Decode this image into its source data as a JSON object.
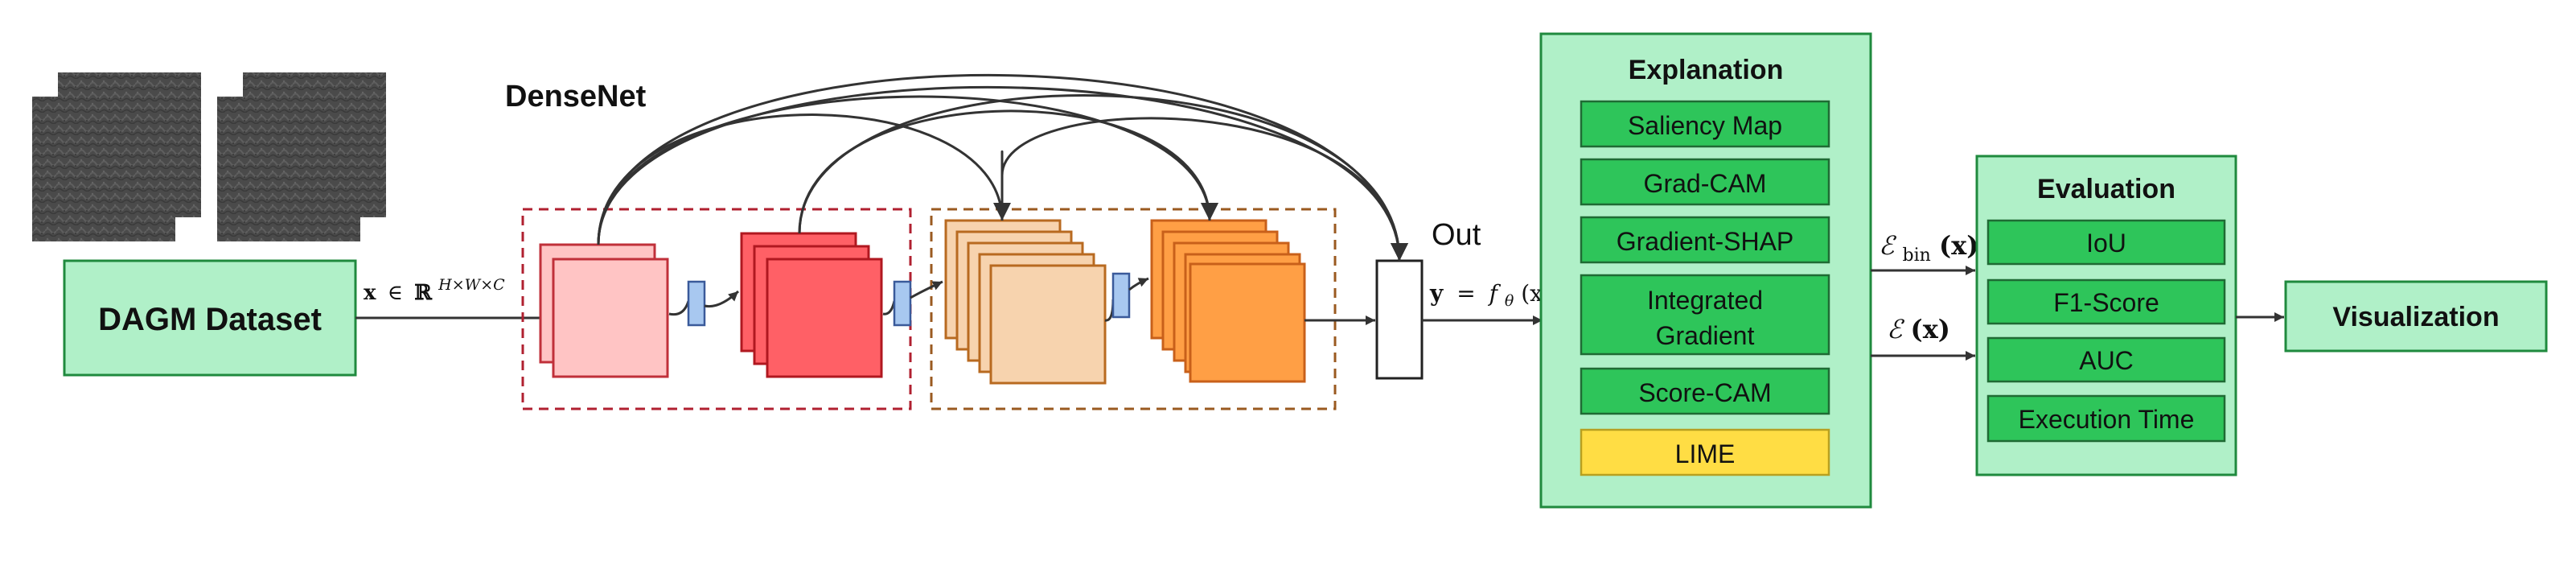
{
  "dataset": {
    "label": "DAGM Dataset"
  },
  "input_label": {
    "symbol": "x",
    "member_of": "∈",
    "space": "ℝ",
    "dims": "H×W×C"
  },
  "network": {
    "title": "DenseNet"
  },
  "output": {
    "label": "Out",
    "eq_lhs": "y",
    "eq_op": "=",
    "eq_fn": "f",
    "eq_sub": "θ",
    "eq_arg": "(x)"
  },
  "explanation": {
    "title": "Explanation",
    "methods": [
      "Saliency Map",
      "Grad-CAM",
      "Gradient-SHAP",
      "Integrated",
      "Gradient",
      "Score-CAM",
      "LIME"
    ]
  },
  "edges": {
    "binary_map": {
      "symbol": "ℰ",
      "sub": "bin",
      "arg": "(x)"
    },
    "map": {
      "symbol": "ℰ",
      "arg": "(x)"
    }
  },
  "evaluation": {
    "title": "Evaluation",
    "metrics": [
      "IoU",
      "F1-Score",
      "AUC",
      "Execution Time"
    ]
  },
  "visualization": {
    "label": "Visualization"
  },
  "colors": {
    "panel_fill": "#b0f0c8",
    "panel_stroke": "#1f8a3e",
    "item_fill": "#2ec55a",
    "lime_fill": "#ffdd44",
    "lime_stroke": "#b8a020",
    "block1_fill": "#ffc4c4",
    "block1_stroke": "#c0303a",
    "block2_fill": "#ff6066",
    "block2_stroke": "#b01820",
    "block3_fill": "#f7d3ae",
    "block3_stroke": "#b86a20",
    "block4_fill": "#ff9f45",
    "block4_stroke": "#c8601a",
    "transition_fill": "#a8c8f0",
    "transition_stroke": "#3a5a9a",
    "dense_block1_dash": "#b02030",
    "dense_block2_dash": "#9a5a20"
  }
}
